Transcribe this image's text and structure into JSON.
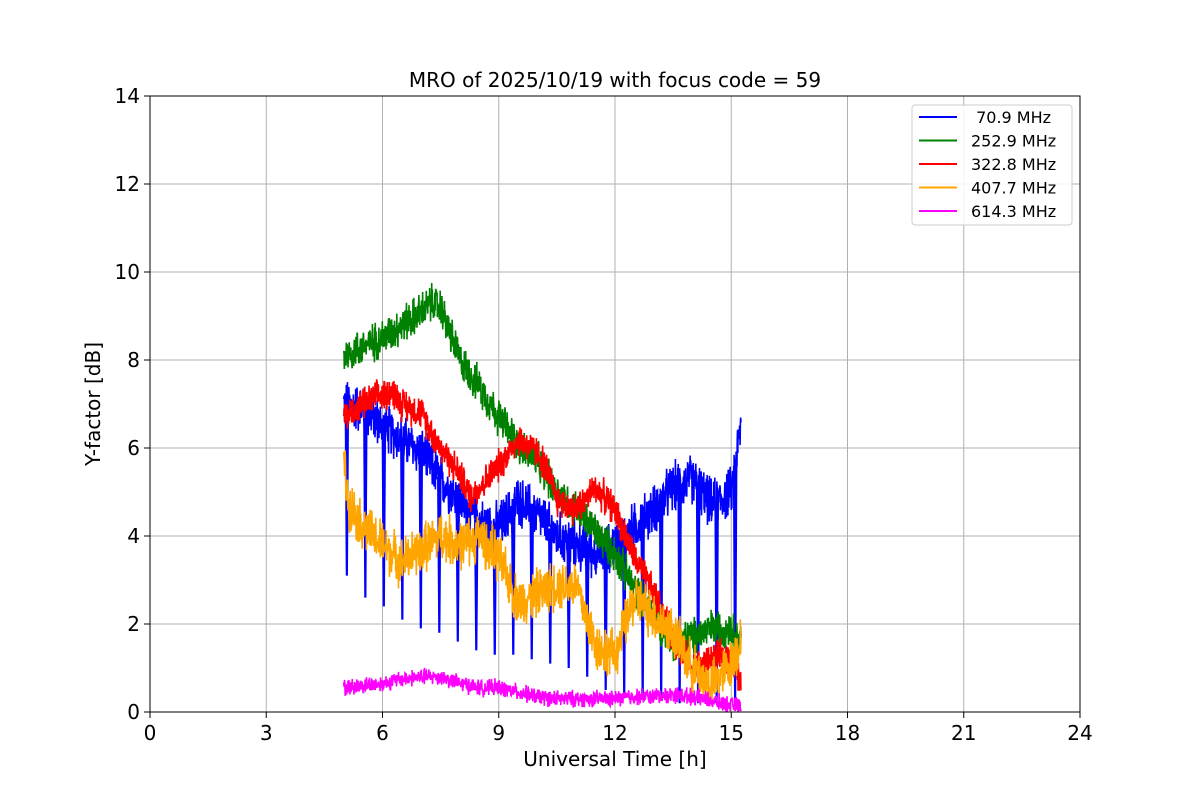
{
  "chart_data": {
    "type": "line",
    "title": "MRO of 2025/10/19 with focus code = 59",
    "xlabel": "Universal Time [h]",
    "ylabel": "Y-factor [dB]",
    "xlim": [
      0,
      24
    ],
    "ylim": [
      0,
      14
    ],
    "xticks": [
      0,
      3,
      6,
      9,
      12,
      15,
      18,
      21,
      24
    ],
    "yticks": [
      0,
      2,
      4,
      6,
      8,
      10,
      12,
      14
    ],
    "grid": true,
    "legend_position": "top-right",
    "series": [
      {
        "name": " 70.9 MHz",
        "color": "#0000ff",
        "x": [
          5.0,
          5.5,
          6.0,
          6.5,
          7.0,
          7.5,
          8.0,
          8.5,
          9.0,
          9.5,
          10.0,
          10.5,
          11.0,
          11.5,
          12.0,
          12.5,
          13.0,
          13.5,
          14.0,
          14.5,
          15.0,
          15.25
        ],
        "values": [
          7.0,
          6.9,
          6.5,
          6.2,
          5.9,
          5.3,
          4.8,
          4.3,
          4.2,
          4.8,
          4.5,
          4.0,
          3.8,
          3.6,
          3.8,
          4.2,
          4.6,
          5.1,
          5.3,
          4.7,
          5.0,
          6.5
        ],
        "dips": [
          3.1,
          2.6,
          2.4,
          2.1,
          1.9,
          1.8,
          1.6,
          1.4,
          1.3,
          1.3,
          1.2,
          1.1,
          1.0,
          0.8,
          0.5,
          0.4,
          0.3,
          0.3,
          0.2,
          0.2,
          0.2,
          0.2
        ]
      },
      {
        "name": "252.9 MHz",
        "color": "#008000",
        "x": [
          5.0,
          5.5,
          6.0,
          6.5,
          7.0,
          7.25,
          7.5,
          8.0,
          8.5,
          9.0,
          9.5,
          10.0,
          10.5,
          11.0,
          11.5,
          12.0,
          12.5,
          13.0,
          13.5,
          14.0,
          14.5,
          15.0,
          15.25
        ],
        "values": [
          8.1,
          8.3,
          8.5,
          8.8,
          9.1,
          9.3,
          9.2,
          8.0,
          7.4,
          6.7,
          6.1,
          5.7,
          5.0,
          4.6,
          4.1,
          3.6,
          2.8,
          2.2,
          1.6,
          1.7,
          1.9,
          1.9,
          1.6
        ]
      },
      {
        "name": "322.8 MHz",
        "color": "#ff0000",
        "x": [
          5.0,
          5.5,
          6.0,
          6.25,
          6.5,
          7.0,
          7.5,
          8.0,
          8.25,
          8.5,
          9.0,
          9.5,
          10.0,
          10.25,
          10.5,
          11.0,
          11.5,
          12.0,
          12.5,
          13.0,
          13.5,
          14.0,
          14.5,
          15.0,
          15.25
        ],
        "values": [
          6.7,
          7.0,
          7.2,
          7.3,
          7.0,
          6.8,
          6.0,
          5.4,
          4.9,
          5.1,
          5.6,
          6.2,
          5.9,
          5.5,
          4.8,
          4.6,
          5.1,
          4.6,
          3.5,
          2.7,
          1.7,
          1.0,
          1.2,
          1.3,
          0.6
        ]
      },
      {
        "name": "407.7 MHz",
        "color": "#ffa500",
        "x": [
          5.0,
          5.1,
          5.5,
          6.0,
          6.5,
          7.0,
          7.5,
          8.0,
          8.5,
          9.0,
          9.5,
          10.0,
          10.5,
          11.0,
          11.5,
          12.0,
          12.5,
          13.0,
          13.5,
          14.0,
          14.5,
          15.0,
          15.25
        ],
        "values": [
          5.8,
          4.8,
          4.2,
          3.8,
          3.4,
          3.7,
          4.0,
          3.8,
          4.0,
          3.5,
          2.5,
          2.7,
          2.9,
          2.9,
          1.5,
          1.3,
          2.6,
          2.2,
          1.8,
          1.0,
          0.6,
          1.1,
          1.6
        ]
      },
      {
        "name": "614.3 MHz",
        "color": "#ff00ff",
        "x": [
          5.0,
          5.5,
          6.0,
          6.5,
          7.0,
          7.5,
          8.0,
          8.5,
          9.0,
          9.5,
          10.0,
          10.5,
          11.0,
          11.5,
          12.0,
          12.5,
          13.0,
          13.5,
          14.0,
          14.5,
          15.0,
          15.25
        ],
        "values": [
          0.55,
          0.6,
          0.65,
          0.75,
          0.8,
          0.8,
          0.65,
          0.55,
          0.55,
          0.45,
          0.35,
          0.3,
          0.3,
          0.3,
          0.3,
          0.35,
          0.35,
          0.4,
          0.35,
          0.25,
          0.15,
          0.15
        ]
      }
    ]
  }
}
